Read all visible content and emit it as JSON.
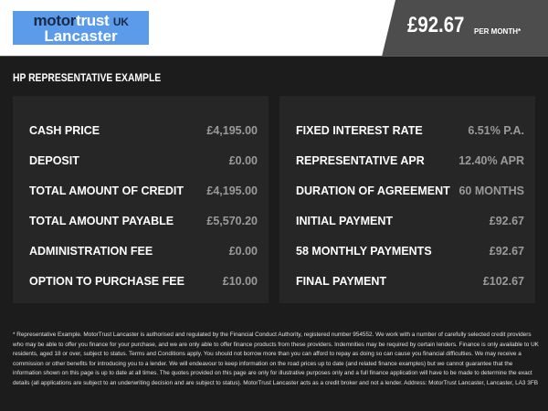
{
  "header": {
    "logo": {
      "part1": "motor",
      "part2": "trust",
      "part3": "UK",
      "line2": "Lancaster"
    },
    "price": "£92.67",
    "per_month": "PER MONTH*"
  },
  "section_title": "HP REPRESENTATIVE EXAMPLE",
  "left_rows": [
    {
      "label": "CASH PRICE",
      "value": "£4,195.00"
    },
    {
      "label": "DEPOSIT",
      "value": "£0.00"
    },
    {
      "label": "TOTAL AMOUNT OF CREDIT",
      "value": "£4,195.00"
    },
    {
      "label": "TOTAL AMOUNT PAYABLE",
      "value": "£5,570.20"
    },
    {
      "label": "ADMINISTRATION FEE",
      "value": "£0.00"
    },
    {
      "label": "OPTION TO PURCHASE FEE",
      "value": "£10.00"
    }
  ],
  "right_rows": [
    {
      "label": "FIXED INTEREST RATE",
      "value": "6.51% P.A."
    },
    {
      "label": "REPRESENTATIVE APR",
      "value": "12.40% APR"
    },
    {
      "label": "DURATION OF AGREEMENT",
      "value": "60 MONTHS"
    },
    {
      "label": "INITIAL PAYMENT",
      "value": "£92.67"
    },
    {
      "label": "58 MONTHLY PAYMENTS",
      "value": "£92.67"
    },
    {
      "label": "FINAL PAYMENT",
      "value": "£102.67"
    }
  ],
  "footer": "* Representative Example. MotorTrust Lancaster is authorised and regulated by the Financial Conduct Authority, registered number 954552. We work with a number of carefully selected credit providers who may be able to offer you finance for your purchase, and we are only able to offer finance products from these providers. Indemnities may be required by certain lenders. Finance is only available to UK residents, aged 18 or over, subject to status. Terms and Conditions apply. You should not borrow more than you can afford to repay as doing so can cause you financial difficulties. We may receive a commission or other benefits for introducing you to a lender. We will endeavour to keep information on the road prices up to date (and related finance examples) but we cannot guarantee that the information shown on this page is up to date at all times. The quotes provided on this page are only for illustrative purposes only and a full finance application will have to be made to determine the exact details (all applications are subject to an underwriting decision and are subject to status). MotorTrust Lancaster acts as a credit broker and not a lender. Address: MotorTrust Lancaster, Lancaster, LA3 3FB"
}
